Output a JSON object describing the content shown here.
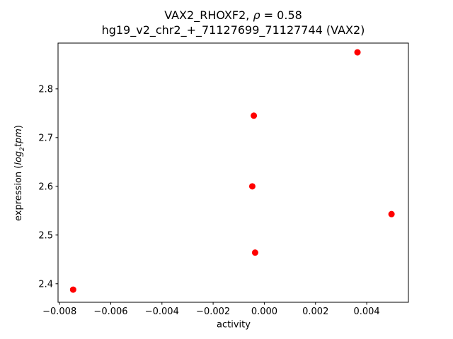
{
  "figure": {
    "background": "#ffffff"
  },
  "chart_data": {
    "type": "scatter",
    "title_line1_parts": {
      "prefix": "VAX2_RHOXF2, ",
      "rho": "ρ",
      "suffix": " = 0.58"
    },
    "title_line2": "hg19_v2_chr2_+_71127699_71127744 (VAX2)",
    "xlabel": "activity",
    "ylabel_parts": {
      "prefix": "expression (",
      "italic1": "log",
      "sub": "2",
      "italic2": "tpm",
      "suffix": ")"
    },
    "xlim": [
      -0.00806,
      0.00563
    ],
    "ylim": [
      2.362,
      2.894
    ],
    "x_ticks": [
      {
        "value": -0.008,
        "label": "−0.008"
      },
      {
        "value": -0.006,
        "label": "−0.006"
      },
      {
        "value": -0.004,
        "label": "−0.004"
      },
      {
        "value": -0.002,
        "label": "−0.002"
      },
      {
        "value": 0.0,
        "label": "0.000"
      },
      {
        "value": 0.002,
        "label": "0.002"
      },
      {
        "value": 0.004,
        "label": "0.004"
      }
    ],
    "y_ticks": [
      {
        "value": 2.4,
        "label": "2.4"
      },
      {
        "value": 2.5,
        "label": "2.5"
      },
      {
        "value": 2.6,
        "label": "2.6"
      },
      {
        "value": 2.7,
        "label": "2.7"
      },
      {
        "value": 2.8,
        "label": "2.8"
      }
    ],
    "points": [
      {
        "x": -0.00747,
        "y": 2.388
      },
      {
        "x": -0.00047,
        "y": 2.6
      },
      {
        "x": -0.00041,
        "y": 2.745
      },
      {
        "x": -0.00036,
        "y": 2.464
      },
      {
        "x": 0.00364,
        "y": 2.875
      },
      {
        "x": 0.00497,
        "y": 2.543
      }
    ],
    "marker_color": "#ff0000",
    "marker_radius": 4.5,
    "spine_color": "#000000",
    "grid": false,
    "legend": null
  }
}
